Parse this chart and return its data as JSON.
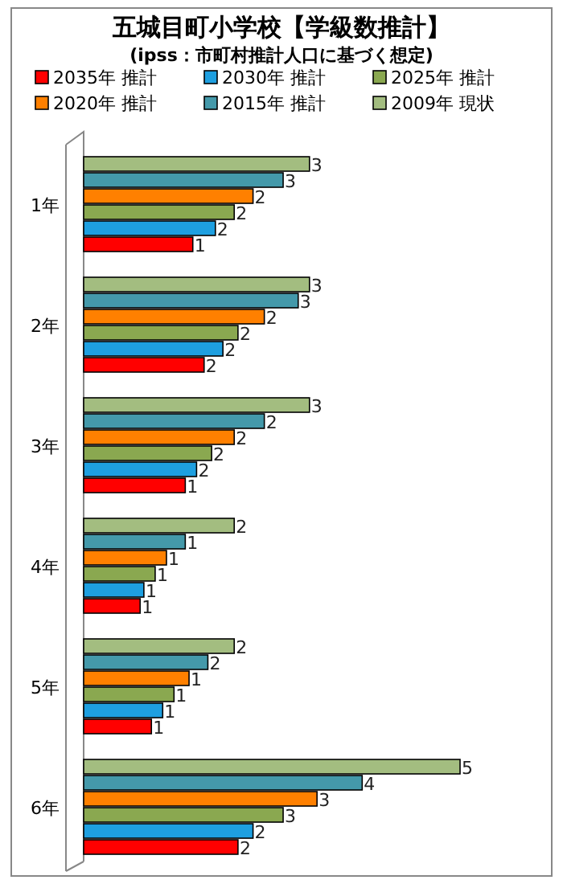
{
  "chart_data": {
    "type": "bar",
    "orientation": "horizontal",
    "title": "五城目町小学校【学級数推計】",
    "subtitle": "(ipss：市町村推計人口に基づく想定)",
    "categories": [
      "1年",
      "2年",
      "3年",
      "4年",
      "5年",
      "6年"
    ],
    "series": [
      {
        "name": "2035年 推計",
        "color": "#ff0000",
        "values": [
          1.45,
          1.6,
          1.35,
          0.75,
          0.9,
          2.05
        ],
        "value_labels": [
          "1",
          "2",
          "1",
          "1",
          "1",
          "2"
        ]
      },
      {
        "name": "2030年 推計",
        "color": "#1e9fe0",
        "values": [
          1.75,
          1.85,
          1.5,
          0.8,
          1.05,
          2.25
        ],
        "value_labels": [
          "2",
          "2",
          "2",
          "1",
          "1",
          "2"
        ]
      },
      {
        "name": "2025年 推計",
        "color": "#8aa850",
        "values": [
          2.0,
          2.05,
          1.7,
          0.95,
          1.2,
          2.65
        ],
        "value_labels": [
          "2",
          "2",
          "2",
          "1",
          "1",
          "3"
        ]
      },
      {
        "name": "2020年 推計",
        "color": "#ff8000",
        "values": [
          2.25,
          2.4,
          2.0,
          1.1,
          1.4,
          3.1
        ],
        "value_labels": [
          "2",
          "2",
          "2",
          "1",
          "1",
          "3"
        ]
      },
      {
        "name": "2015年 推計",
        "color": "#4499aa",
        "values": [
          2.65,
          2.85,
          2.4,
          1.35,
          1.65,
          3.7
        ],
        "value_labels": [
          "3",
          "3",
          "2",
          "1",
          "2",
          "4"
        ]
      },
      {
        "name": "2009年 現状",
        "color": "#a3bd80",
        "values": [
          3,
          3,
          3,
          2,
          2,
          5
        ],
        "value_labels": [
          "3",
          "3",
          "3",
          "2",
          "2",
          "5"
        ]
      }
    ],
    "legend": "top"
  }
}
